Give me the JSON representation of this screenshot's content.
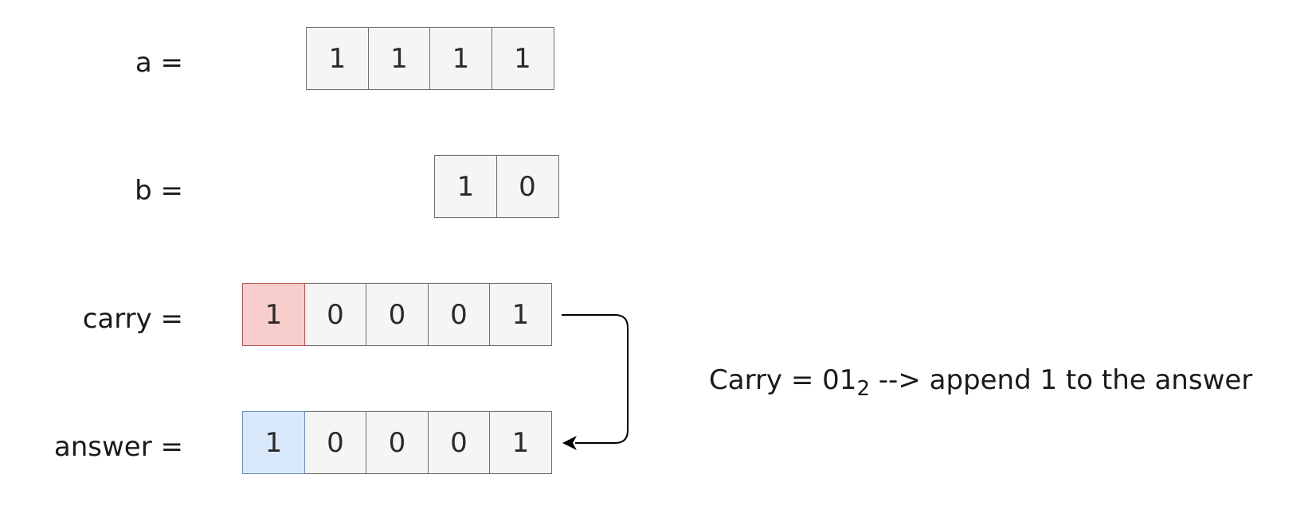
{
  "rows": {
    "a": {
      "label": "a =",
      "bits": [
        "1",
        "1",
        "1",
        "1"
      ]
    },
    "b": {
      "label": "b =",
      "bits": [
        "1",
        "0"
      ]
    },
    "carry": {
      "label": "carry =",
      "bits": [
        "1",
        "0",
        "0",
        "0",
        "1"
      ]
    },
    "answer": {
      "label": "answer =",
      "bits": [
        "1",
        "0",
        "0",
        "0",
        "1"
      ]
    }
  },
  "note": {
    "prefix": "Carry = 01",
    "base": "2",
    "suffix": " --> append 1 to the answer"
  },
  "colors": {
    "cell_fill": "#f5f5f5",
    "cell_border": "#6f6f6f",
    "carry_highlight_fill": "#f8cecc",
    "carry_highlight_border": "#b85450",
    "answer_highlight_fill": "#dae8fc",
    "answer_highlight_border": "#6c8ebf",
    "arrow": "#000000"
  }
}
